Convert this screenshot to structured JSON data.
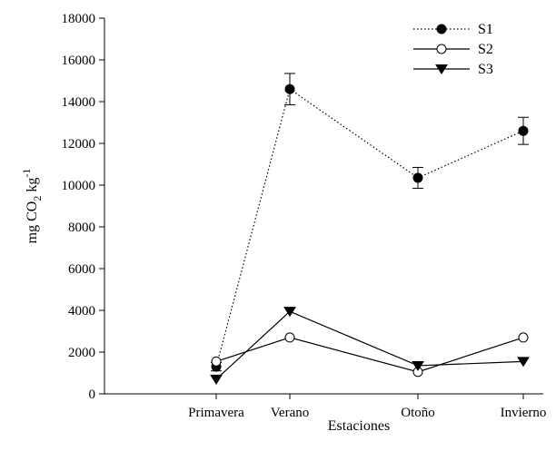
{
  "chart_data": {
    "type": "line",
    "title": "",
    "xlabel": "Estaciones",
    "ylabel": {
      "prefix": "mg CO",
      "sub": "2",
      "mid": " kg",
      "sup": "-1"
    },
    "categories": [
      "Primavera",
      "Verano",
      "Otoño",
      "Invierno"
    ],
    "ylim": [
      0,
      18000
    ],
    "yticks": [
      0,
      2000,
      4000,
      6000,
      8000,
      10000,
      12000,
      14000,
      16000,
      18000
    ],
    "grid": false,
    "legend_position": "top-right",
    "series": [
      {
        "name": "S1",
        "marker": "filled-circle",
        "line_style": "dotted",
        "values": [
          1300,
          14600,
          10350,
          12600
        ],
        "errors": [
          200,
          750,
          500,
          650
        ]
      },
      {
        "name": "S2",
        "marker": "open-circle",
        "line_style": "solid",
        "values": [
          1550,
          2700,
          1050,
          2700
        ],
        "errors": [
          0,
          0,
          0,
          0
        ]
      },
      {
        "name": "S3",
        "marker": "filled-triangle-down",
        "line_style": "solid",
        "values": [
          700,
          3950,
          1350,
          1550
        ],
        "errors": [
          0,
          0,
          0,
          0
        ]
      }
    ]
  }
}
